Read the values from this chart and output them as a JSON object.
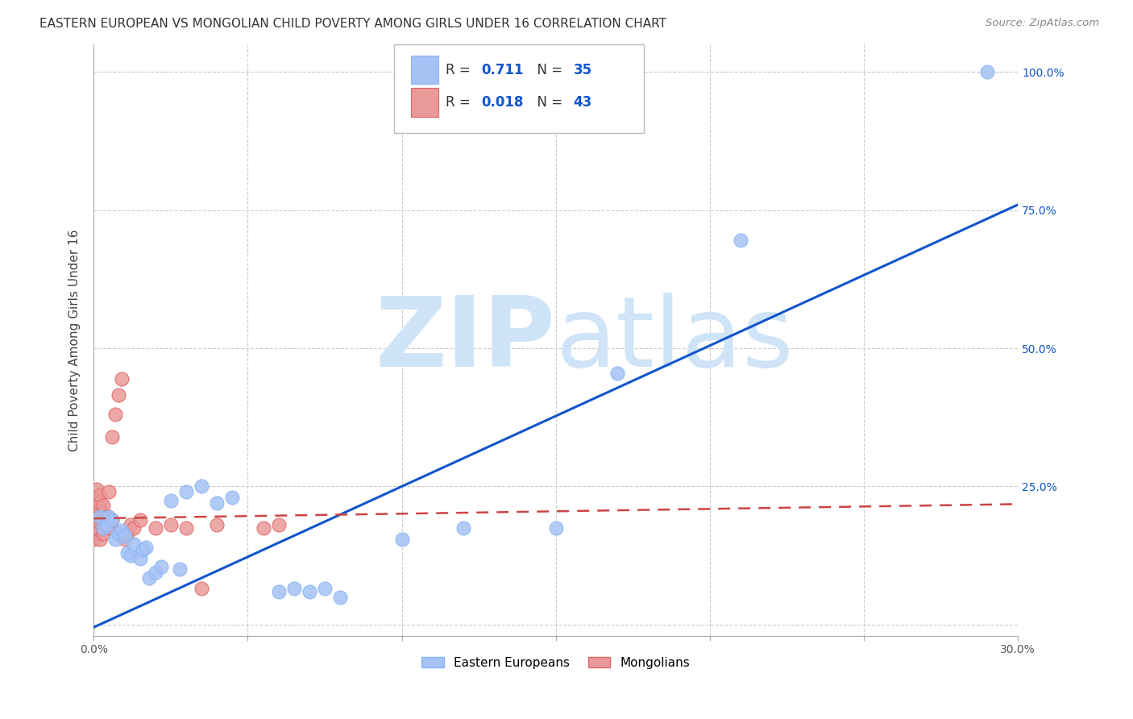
{
  "title": "EASTERN EUROPEAN VS MONGOLIAN CHILD POVERTY AMONG GIRLS UNDER 16 CORRELATION CHART",
  "source": "Source: ZipAtlas.com",
  "ylabel": "Child Poverty Among Girls Under 16",
  "xlabel": "",
  "xlim": [
    0.0,
    0.3
  ],
  "ylim": [
    -0.02,
    1.05
  ],
  "xticks": [
    0.0,
    0.05,
    0.1,
    0.15,
    0.2,
    0.25,
    0.3
  ],
  "xticklabels": [
    "0.0%",
    "",
    "",
    "",
    "",
    "",
    "30.0%"
  ],
  "yticks": [
    0.0,
    0.25,
    0.5,
    0.75,
    1.0
  ],
  "yticklabels": [
    "",
    "25.0%",
    "50.0%",
    "75.0%",
    "100.0%"
  ],
  "blue_r": "0.711",
  "blue_n": "35",
  "pink_r": "0.018",
  "pink_n": "43",
  "blue_color": "#a4c2f4",
  "pink_color": "#ea9999",
  "blue_line_color": "#1155cc",
  "pink_line_color": "#cc4444",
  "legend_text_color": "#1155cc",
  "grid_color": "#cccccc",
  "watermark_color": "#d0e4f7",
  "blue_dots": [
    [
      0.002,
      0.195
    ],
    [
      0.003,
      0.175
    ],
    [
      0.004,
      0.18
    ],
    [
      0.005,
      0.195
    ],
    [
      0.006,
      0.19
    ],
    [
      0.007,
      0.155
    ],
    [
      0.008,
      0.165
    ],
    [
      0.009,
      0.17
    ],
    [
      0.01,
      0.16
    ],
    [
      0.011,
      0.13
    ],
    [
      0.012,
      0.125
    ],
    [
      0.013,
      0.145
    ],
    [
      0.015,
      0.12
    ],
    [
      0.016,
      0.135
    ],
    [
      0.017,
      0.14
    ],
    [
      0.018,
      0.085
    ],
    [
      0.02,
      0.095
    ],
    [
      0.022,
      0.105
    ],
    [
      0.025,
      0.225
    ],
    [
      0.028,
      0.1
    ],
    [
      0.03,
      0.24
    ],
    [
      0.035,
      0.25
    ],
    [
      0.04,
      0.22
    ],
    [
      0.045,
      0.23
    ],
    [
      0.06,
      0.06
    ],
    [
      0.065,
      0.065
    ],
    [
      0.07,
      0.06
    ],
    [
      0.075,
      0.065
    ],
    [
      0.08,
      0.05
    ],
    [
      0.1,
      0.155
    ],
    [
      0.12,
      0.175
    ],
    [
      0.15,
      0.175
    ],
    [
      0.17,
      0.455
    ],
    [
      0.21,
      0.695
    ],
    [
      0.29,
      1.0
    ]
  ],
  "pink_dots": [
    [
      0.0,
      0.155
    ],
    [
      0.001,
      0.175
    ],
    [
      0.001,
      0.195
    ],
    [
      0.001,
      0.21
    ],
    [
      0.001,
      0.225
    ],
    [
      0.001,
      0.23
    ],
    [
      0.001,
      0.245
    ],
    [
      0.001,
      0.165
    ],
    [
      0.002,
      0.17
    ],
    [
      0.002,
      0.185
    ],
    [
      0.002,
      0.195
    ],
    [
      0.002,
      0.21
    ],
    [
      0.002,
      0.22
    ],
    [
      0.002,
      0.235
    ],
    [
      0.002,
      0.155
    ],
    [
      0.003,
      0.175
    ],
    [
      0.003,
      0.19
    ],
    [
      0.003,
      0.2
    ],
    [
      0.003,
      0.215
    ],
    [
      0.003,
      0.165
    ],
    [
      0.004,
      0.18
    ],
    [
      0.004,
      0.195
    ],
    [
      0.005,
      0.175
    ],
    [
      0.005,
      0.185
    ],
    [
      0.005,
      0.24
    ],
    [
      0.006,
      0.175
    ],
    [
      0.006,
      0.19
    ],
    [
      0.006,
      0.34
    ],
    [
      0.007,
      0.38
    ],
    [
      0.008,
      0.415
    ],
    [
      0.009,
      0.445
    ],
    [
      0.01,
      0.155
    ],
    [
      0.011,
      0.165
    ],
    [
      0.012,
      0.18
    ],
    [
      0.013,
      0.175
    ],
    [
      0.015,
      0.19
    ],
    [
      0.02,
      0.175
    ],
    [
      0.025,
      0.18
    ],
    [
      0.03,
      0.175
    ],
    [
      0.035,
      0.065
    ],
    [
      0.04,
      0.18
    ],
    [
      0.055,
      0.175
    ],
    [
      0.06,
      0.18
    ]
  ],
  "blue_trend_x": [
    0.0,
    0.3
  ],
  "blue_trend_y": [
    -0.005,
    0.76
  ],
  "pink_trend_x": [
    0.0,
    0.3
  ],
  "pink_trend_y": [
    0.192,
    0.218
  ]
}
